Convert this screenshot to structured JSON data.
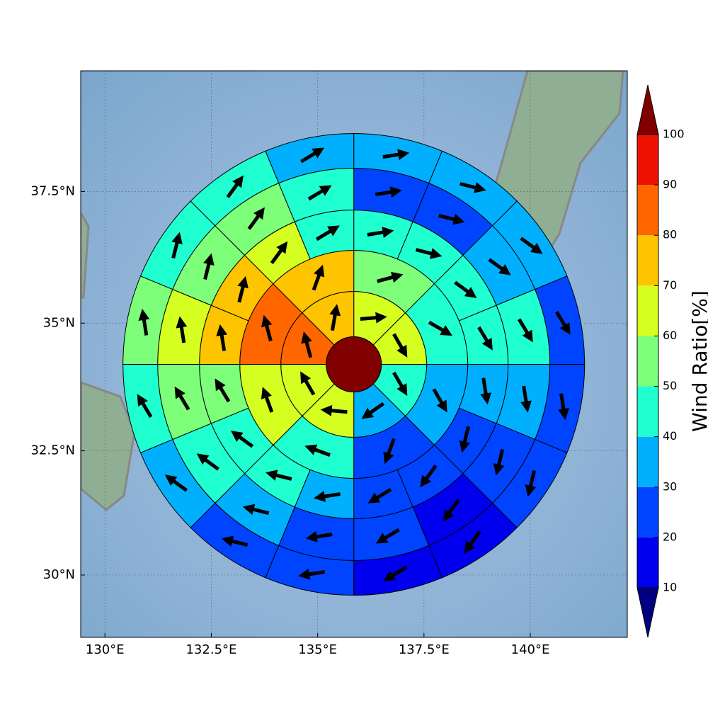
{
  "chart_data": {
    "type": "polar-sector-map",
    "xlim": [
      129.43,
      142.28
    ],
    "ylim": [
      28.72,
      39.72
    ],
    "xticks": [
      {
        "value": 130,
        "label": "130°E"
      },
      {
        "value": 132.5,
        "label": "132.5°E"
      },
      {
        "value": 135,
        "label": "135°E"
      },
      {
        "value": 137.5,
        "label": "137.5°E"
      },
      {
        "value": 140,
        "label": "140°E"
      }
    ],
    "yticks": [
      {
        "value": 30,
        "label": "30°N"
      },
      {
        "value": 32.5,
        "label": "32.5°N"
      },
      {
        "value": 35,
        "label": "35°N"
      },
      {
        "value": 37.5,
        "label": "37.5°N"
      }
    ],
    "grid": true,
    "center": [
      135.85,
      34.2
    ],
    "center_value": 105,
    "rings": [
      {
        "values": [
          65,
          65,
          45,
          35,
          65,
          65,
          85,
          75
        ],
        "directions": [
          85,
          150,
          150,
          235,
          275,
          330,
          345,
          10
        ]
      },
      {
        "values": [
          55,
          45,
          35,
          25,
          45,
          65,
          85,
          75
        ],
        "directions": [
          75,
          120,
          150,
          200,
          290,
          340,
          345,
          20
        ]
      },
      {
        "values": [
          45,
          45,
          45,
          45,
          35,
          25,
          25,
          25,
          35,
          45,
          45,
          55,
          75,
          75,
          65,
          45
        ],
        "directions": [
          81,
          104,
          126,
          149,
          171,
          194,
          216,
          239,
          261,
          284,
          306,
          329,
          351,
          14,
          36,
          59
        ]
      },
      {
        "values": [
          25,
          25,
          35,
          45,
          35,
          25,
          15,
          25,
          25,
          35,
          45,
          55,
          65,
          55,
          55,
          45
        ],
        "directions": [
          81,
          104,
          126,
          149,
          171,
          194,
          216,
          239,
          261,
          284,
          306,
          329,
          351,
          14,
          36,
          59
        ]
      },
      {
        "values": [
          35,
          35,
          35,
          25,
          25,
          25,
          15,
          15,
          25,
          25,
          35,
          45,
          55,
          45,
          45,
          35
        ],
        "directions": [
          81,
          104,
          126,
          149,
          171,
          194,
          216,
          239,
          261,
          284,
          306,
          329,
          351,
          14,
          36,
          59
        ]
      }
    ],
    "colorbar": {
      "label": "Wind Ratio[%]",
      "boundaries": [
        10,
        20,
        30,
        40,
        50,
        60,
        70,
        80,
        90,
        100
      ],
      "colors": [
        "#000080",
        "#0000ee",
        "#0044ff",
        "#00b0ff",
        "#20ffd0",
        "#7dff7a",
        "#d4ff20",
        "#ffc400",
        "#ff6600",
        "#ee1100",
        "#800000"
      ]
    }
  }
}
